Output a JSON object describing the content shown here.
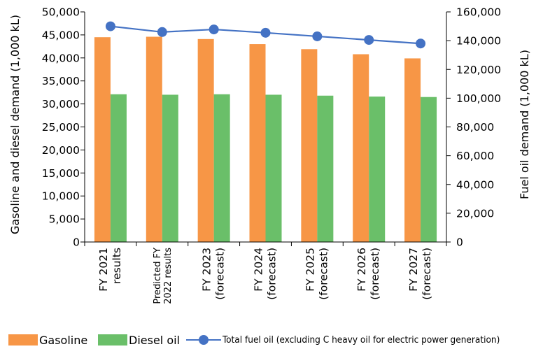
{
  "chart_data": {
    "type": "bar",
    "categories": [
      [
        "FY 2021",
        "results"
      ],
      [
        "Predicted FY",
        "2022 results"
      ],
      [
        "FY 2023",
        "(forecast)"
      ],
      [
        "FY 2024",
        "(forecast)"
      ],
      [
        "FY 2025",
        "(forecast)"
      ],
      [
        "FY 2026",
        "(forecast)"
      ],
      [
        "FY 2027",
        "(forecast)"
      ]
    ],
    "series": [
      {
        "name": "Gasoline",
        "type": "bar",
        "axis": "left",
        "color": "#F79646",
        "values": [
          44500,
          44600,
          44100,
          43000,
          41900,
          40800,
          39900
        ]
      },
      {
        "name": "Diesel oil",
        "type": "bar",
        "axis": "left",
        "color": "#6ABF69",
        "values": [
          32100,
          32000,
          32100,
          32000,
          31800,
          31600,
          31500
        ]
      },
      {
        "name": "Total fuel oil (excluding C heavy oil for electric power generation)",
        "type": "line",
        "axis": "right",
        "color": "#4472C4",
        "values": [
          150000,
          146000,
          147800,
          145500,
          143000,
          140500,
          138000
        ]
      }
    ],
    "ylabel": "Gasoline and diesel demand (1,000 kL)",
    "y2label": "Fuel oil demand (1,000 kL)",
    "ylim": [
      0,
      50000
    ],
    "y2lim": [
      0,
      160000
    ],
    "yticks": [
      "0",
      "5,000",
      "10,000",
      "15,000",
      "20,000",
      "25,000",
      "30,000",
      "35,000",
      "40,000",
      "45,000",
      "50,000"
    ],
    "y2ticks": [
      "0",
      "20,000",
      "40,000",
      "60,000",
      "80,000",
      "100,000",
      "120,000",
      "140,000",
      "160,000"
    ],
    "grid": false,
    "legend": "bottom"
  }
}
